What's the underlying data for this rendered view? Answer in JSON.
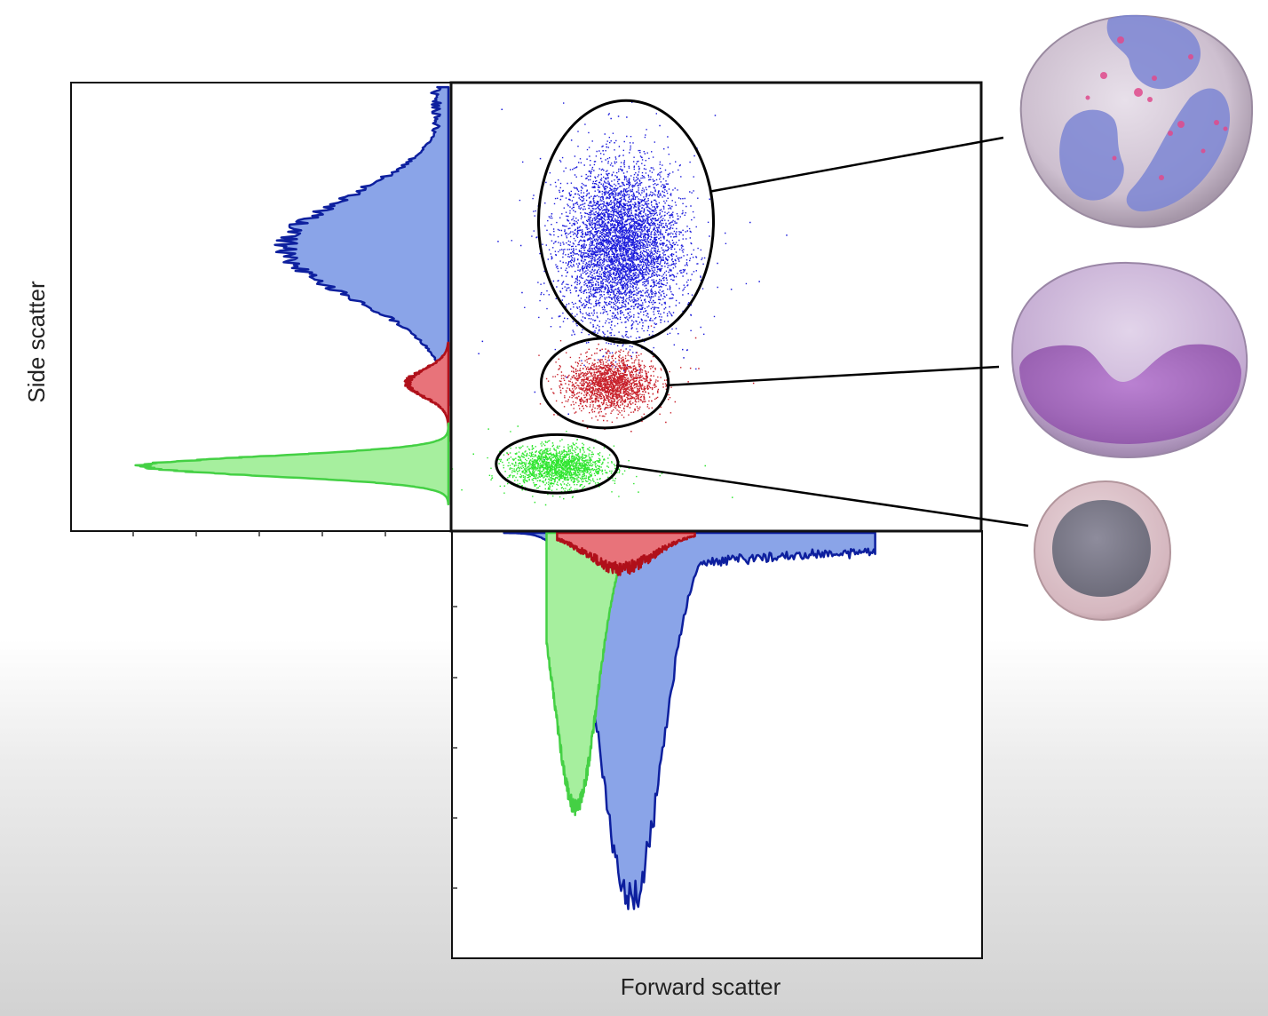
{
  "chart_data": {
    "type": "scatter",
    "title": "",
    "xlabel": "Forward scatter",
    "ylabel": "Side scatter",
    "xlim": [
      0,
      1
    ],
    "ylim": [
      0,
      1
    ],
    "grid": false,
    "legend": "none",
    "populations": [
      {
        "color": "#1a1adb",
        "fill": "#8aa4e8",
        "edge": "#0d1f9e",
        "cell_icon": "granulocyte-cell-icon",
        "fsc_mean": 0.32,
        "fsc_sd": 0.055,
        "ssc_mean": 0.635,
        "ssc_sd": 0.09,
        "gate": {
          "cx": 0.33,
          "cy": 0.69,
          "rx": 0.165,
          "ry": 0.27
        },
        "ssc_hist_peak": 0.47,
        "fsc_hist_peak": 0.83
      },
      {
        "color": "#c8202a",
        "fill": "#e8737a",
        "edge": "#b0101a",
        "cell_icon": "monocyte-cell-icon",
        "fsc_mean": 0.3,
        "fsc_sd": 0.04,
        "ssc_mean": 0.33,
        "ssc_sd": 0.03,
        "gate": {
          "cx": 0.29,
          "cy": 0.33,
          "rx": 0.12,
          "ry": 0.1
        },
        "ssc_hist_peak": 0.12,
        "fsc_hist_peak": 0.08
      },
      {
        "color": "#2ee62e",
        "fill": "#a6ef9e",
        "edge": "#44d044",
        "cell_icon": "lymphocyte-cell-icon",
        "fsc_mean": 0.2,
        "fsc_sd": 0.045,
        "ssc_mean": 0.145,
        "ssc_sd": 0.022,
        "gate": {
          "cx": 0.2,
          "cy": 0.15,
          "rx": 0.115,
          "ry": 0.065
        },
        "ssc_hist_peak": 0.88,
        "fsc_hist_peak": 0.62
      }
    ]
  }
}
